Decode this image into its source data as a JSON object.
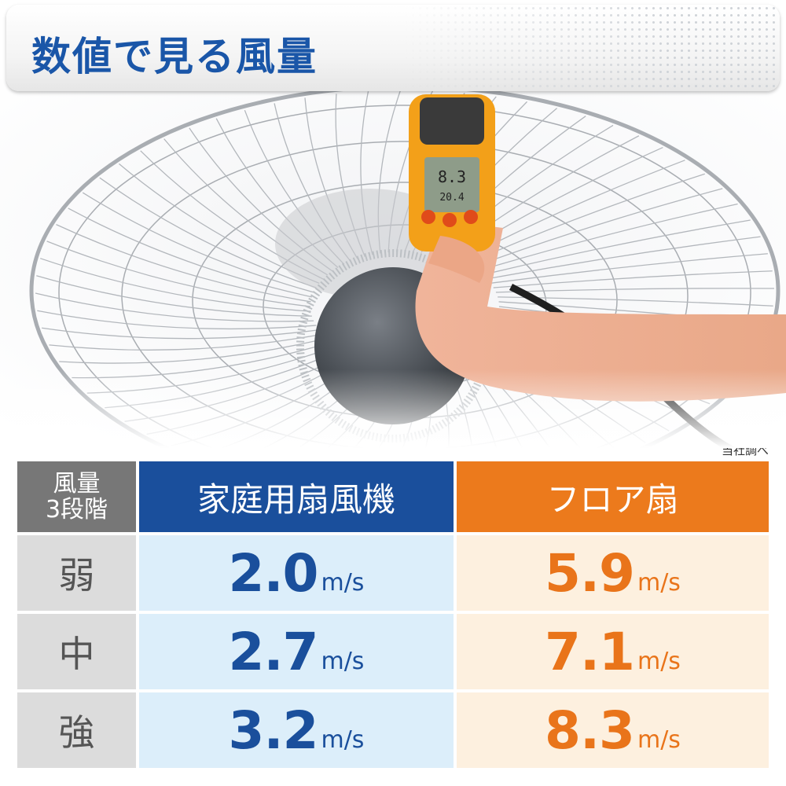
{
  "header": {
    "title": "数値で見る風量"
  },
  "photo": {
    "meter_reading": "8.3",
    "meter_reading_small": "20.4"
  },
  "note": "当社調べ",
  "table": {
    "corner_label_line1": "風量",
    "corner_label_line2": "3段階",
    "col_home": "家庭用扇風機",
    "col_floor": "フロア扇",
    "unit": "m/s",
    "rows": [
      {
        "level": "弱",
        "home": "2.0",
        "floor": "5.9"
      },
      {
        "level": "中",
        "home": "2.7",
        "floor": "7.1"
      },
      {
        "level": "強",
        "home": "3.2",
        "floor": "8.3"
      }
    ]
  },
  "colors": {
    "title_blue": "#1a56a8",
    "home_blue": "#1a4f9c",
    "floor_orange": "#ec7a1c",
    "label_gray": "#777777"
  }
}
